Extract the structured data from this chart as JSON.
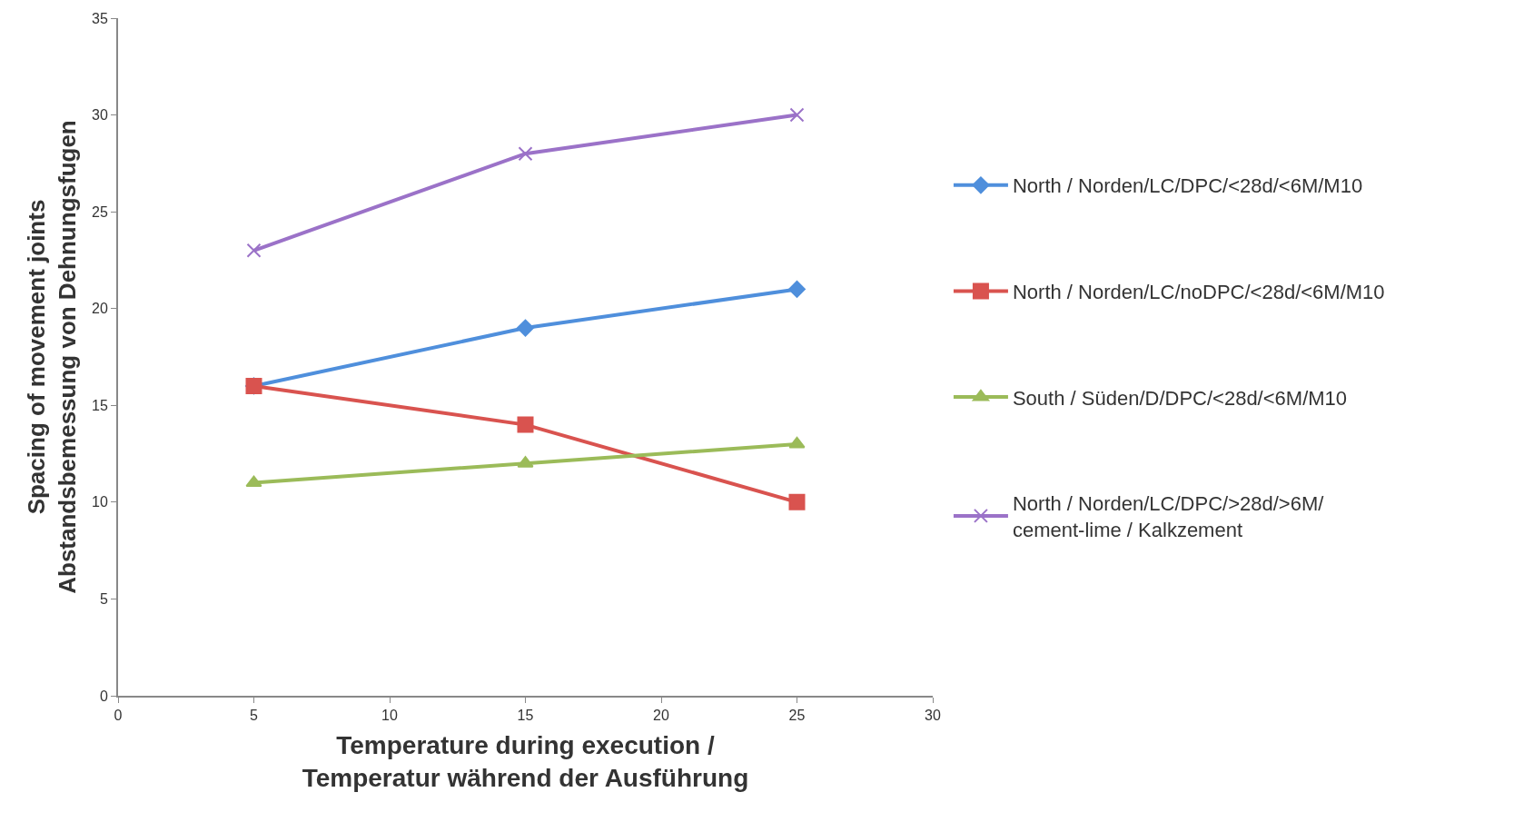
{
  "chart_data": {
    "type": "line",
    "xlabel": "Temperature during execution /\nTemperatur während der Ausführung",
    "ylabel": "Spacing of movement joints\nAbstandsbemessung von Dehnungsfugen",
    "x": [
      5,
      15,
      25
    ],
    "series": [
      {
        "name": "North / Norden/LC/DPC/<28d/<6M/M10",
        "color": "#4f8fdc",
        "marker": "diamond",
        "values": [
          16,
          19,
          21
        ]
      },
      {
        "name": "North / Norden/LC/noDPC/<28d/<6M/M10",
        "color": "#d9534f",
        "marker": "square",
        "values": [
          16,
          14,
          10
        ]
      },
      {
        "name": "South / Süden/D/DPC/<28d/<6M/M10",
        "color": "#9bbb59",
        "marker": "triangle",
        "values": [
          11,
          12,
          13
        ]
      },
      {
        "name": "North / Norden/LC/DPC/>28d/>6M/\ncement-lime / Kalkzement",
        "color": "#9b72c8",
        "marker": "cross",
        "values": [
          23,
          28,
          30
        ]
      }
    ],
    "xlim": [
      0,
      30
    ],
    "xticks": [
      0,
      5,
      10,
      15,
      20,
      25,
      30
    ],
    "ylim": [
      0,
      35
    ],
    "yticks": [
      0,
      5,
      10,
      15,
      20,
      25,
      30,
      35
    ],
    "legend": "right",
    "line_style": "solid"
  }
}
